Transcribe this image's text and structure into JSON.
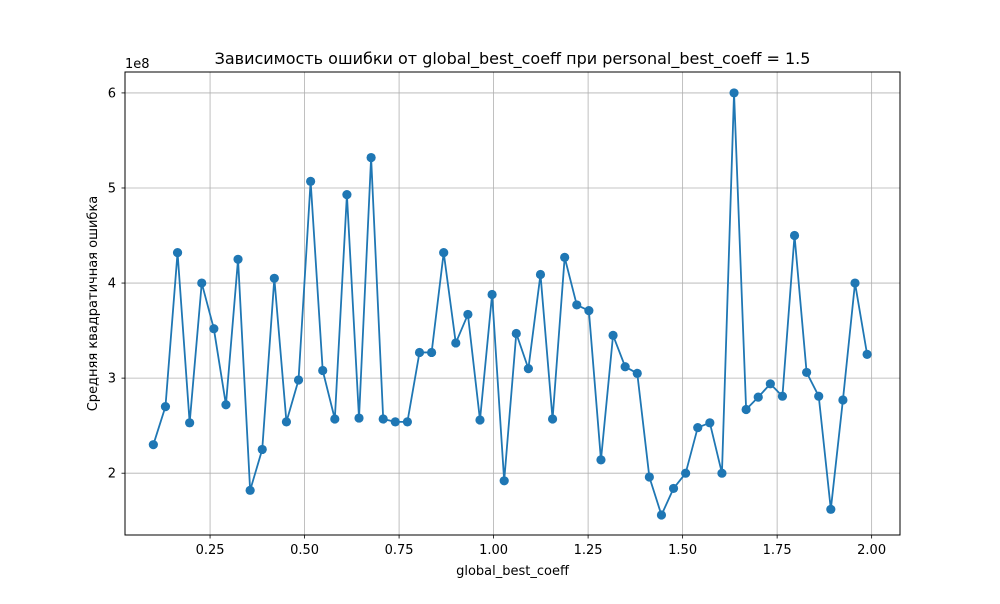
{
  "chart_data": {
    "type": "line",
    "title": "Зависимость ошибки от global_best_coeff при personal_best_coeff = 1.5",
    "xlabel": "global_best_coeff",
    "ylabel": "Средняя квадратичная ошибка",
    "y_offset_label": "1e8",
    "xlim": [
      0.025,
      2.075
    ],
    "ylim": [
      1.35,
      6.22
    ],
    "x_ticks": [
      0.25,
      0.5,
      0.75,
      1.0,
      1.25,
      1.5,
      1.75,
      2.0
    ],
    "x_tick_labels": [
      "0.25",
      "0.50",
      "0.75",
      "1.00",
      "1.25",
      "1.50",
      "1.75",
      "2.00"
    ],
    "y_ticks": [
      2,
      3,
      4,
      5,
      6
    ],
    "y_tick_labels": [
      "2",
      "3",
      "4",
      "5",
      "6"
    ],
    "grid": true,
    "marker": "circle",
    "color": "#1f77b4",
    "series": [
      {
        "x": [
          0.1,
          0.132,
          0.164,
          0.196,
          0.228,
          0.26,
          0.292,
          0.324,
          0.356,
          0.388,
          0.42,
          0.452,
          0.484,
          0.516,
          0.548,
          0.58,
          0.612,
          0.644,
          0.676,
          0.708,
          0.74,
          0.772,
          0.804,
          0.836,
          0.868,
          0.9,
          0.932,
          0.964,
          0.996,
          1.028,
          1.06,
          1.092,
          1.124,
          1.156,
          1.188,
          1.22,
          1.252,
          1.284,
          1.316,
          1.348,
          1.38,
          1.412,
          1.444,
          1.476,
          1.508,
          1.54,
          1.572,
          1.604,
          1.636,
          1.668,
          1.7,
          1.732,
          1.764,
          1.796,
          1.828,
          1.86,
          1.892,
          1.924,
          1.956,
          1.988
        ],
        "y": [
          2.3,
          2.7,
          4.32,
          2.53,
          4.0,
          3.52,
          2.72,
          4.25,
          1.82,
          2.25,
          4.05,
          2.54,
          2.98,
          5.07,
          3.08,
          2.57,
          4.93,
          2.58,
          5.32,
          2.57,
          2.54,
          2.54,
          3.27,
          3.27,
          4.32,
          3.37,
          3.67,
          2.56,
          3.88,
          1.92,
          3.47,
          3.1,
          4.09,
          2.57,
          4.27,
          3.77,
          3.71,
          2.14,
          3.45,
          3.12,
          3.05,
          1.96,
          1.56,
          1.84,
          2.0,
          2.48,
          2.53,
          2.0,
          6.0,
          2.67,
          2.8,
          2.94,
          2.81,
          4.5,
          3.06,
          2.81,
          1.62,
          2.77,
          4.0,
          3.25
        ]
      }
    ]
  }
}
